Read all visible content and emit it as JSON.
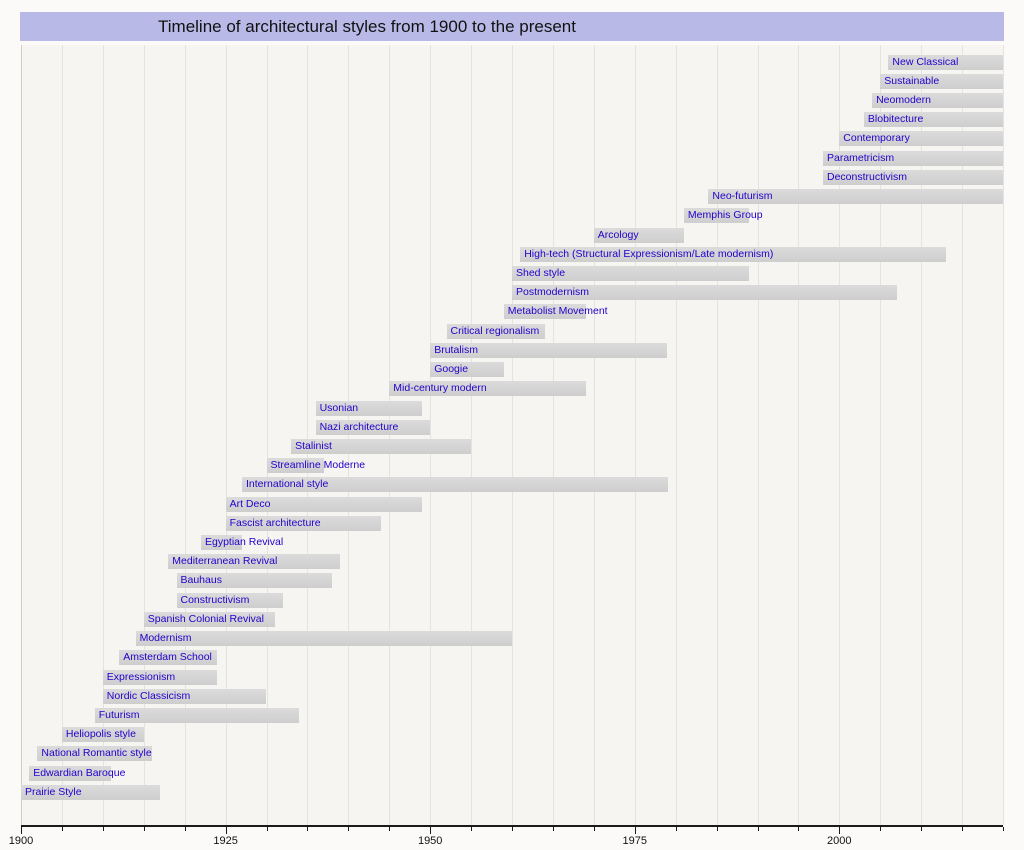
{
  "title": "Timeline of architectural styles from 1900 to the present",
  "colors": {
    "title_bg": "#b9b9e8",
    "bar_fill": "#d5d5d5",
    "label_text": "#2200cc",
    "plot_bg": "#f6f5f2",
    "gridline": "#e5e3de",
    "axis": "#1a1a1a"
  },
  "chart_data": {
    "type": "timeline",
    "title": "Timeline of architectural styles from 1900 to the present",
    "axis": {
      "start_year": 1900,
      "end_year": 2020,
      "major_ticks": [
        1900,
        1925,
        1950,
        1975,
        2000
      ],
      "tick_labels": [
        "1900",
        "1925",
        "1950",
        "1975",
        "2000"
      ],
      "minor_tick_interval": 5,
      "grid": true,
      "grid_interval": 5
    },
    "bars": [
      {
        "label": "New Classical",
        "from": 2006,
        "till": 2020
      },
      {
        "label": "Sustainable",
        "from": 2005,
        "till": 2020
      },
      {
        "label": "Neomodern",
        "from": 2004,
        "till": 2020
      },
      {
        "label": "Blobitecture",
        "from": 2003,
        "till": 2020
      },
      {
        "label": "Contemporary",
        "from": 2000,
        "till": 2020
      },
      {
        "label": "Parametricism",
        "from": 1998,
        "till": 2020
      },
      {
        "label": "Deconstructivism",
        "from": 1998,
        "till": 2020
      },
      {
        "label": "Neo-futurism",
        "from": 1984,
        "till": 2020
      },
      {
        "label": "Memphis Group",
        "from": 1981,
        "till": 1989
      },
      {
        "label": "Arcology",
        "from": 1970,
        "till": 1981
      },
      {
        "label": "High-tech (Structural Expressionism/Late modernism)",
        "from": 1961,
        "till": 2013
      },
      {
        "label": "Shed style",
        "from": 1960,
        "till": 1989
      },
      {
        "label": "Postmodernism",
        "from": 1960,
        "till": 2007
      },
      {
        "label": "Metabolist Movement",
        "from": 1959,
        "till": 1969
      },
      {
        "label": "Critical regionalism",
        "from": 1952,
        "till": 1964
      },
      {
        "label": "Brutalism",
        "from": 1950,
        "till": 1979
      },
      {
        "label": "Googie",
        "from": 1950,
        "till": 1959
      },
      {
        "label": "Mid-century modern",
        "from": 1945,
        "till": 1969
      },
      {
        "label": "Usonian",
        "from": 1936,
        "till": 1949
      },
      {
        "label": "Nazi architecture",
        "from": 1936,
        "till": 1950
      },
      {
        "label": "Stalinist",
        "from": 1933,
        "till": 1955
      },
      {
        "label": "Streamline Moderne",
        "from": 1930,
        "till": 1937
      },
      {
        "label": "International style",
        "from": 1927,
        "till": 1979
      },
      {
        "label": "Art Deco",
        "from": 1925,
        "till": 1949
      },
      {
        "label": "Fascist architecture",
        "from": 1925,
        "till": 1944
      },
      {
        "label": "Egyptian Revival",
        "from": 1922,
        "till": 1927
      },
      {
        "label": "Mediterranean Revival",
        "from": 1918,
        "till": 1939
      },
      {
        "label": "Bauhaus",
        "from": 1919,
        "till": 1938
      },
      {
        "label": "Constructivism",
        "from": 1919,
        "till": 1932
      },
      {
        "label": "Spanish Colonial Revival",
        "from": 1915,
        "till": 1931
      },
      {
        "label": "Modernism",
        "from": 1914,
        "till": 1960
      },
      {
        "label": "Amsterdam School",
        "from": 1912,
        "till": 1924
      },
      {
        "label": "Expressionism",
        "from": 1910,
        "till": 1924
      },
      {
        "label": "Nordic Classicism",
        "from": 1910,
        "till": 1930
      },
      {
        "label": "Futurism",
        "from": 1909,
        "till": 1934
      },
      {
        "label": "Heliopolis style",
        "from": 1905,
        "till": 1915
      },
      {
        "label": "National Romantic style",
        "from": 1902,
        "till": 1916
      },
      {
        "label": "Edwardian Baroque",
        "from": 1901,
        "till": 1911
      },
      {
        "label": "Prairie Style",
        "from": 1900,
        "till": 1917
      }
    ]
  }
}
